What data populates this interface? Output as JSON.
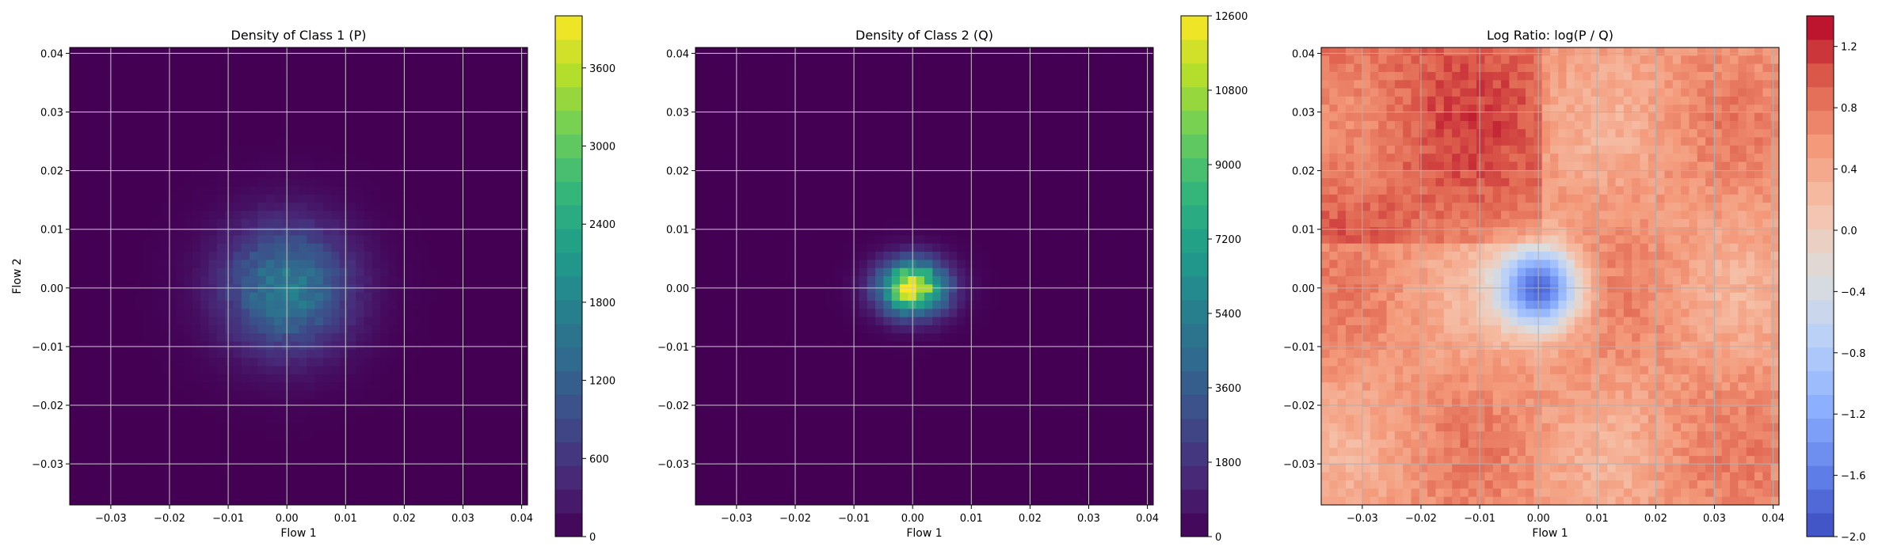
{
  "chart_data": [
    {
      "type": "heatmap",
      "title": "Density of Class 1 (P)",
      "xlabel": "Flow 1",
      "ylabel": "Flow 2",
      "xlim": [
        -0.037,
        0.041
      ],
      "ylim": [
        -0.037,
        0.041
      ],
      "xticks": [
        "−0.03",
        "−0.02",
        "−0.01",
        "0.00",
        "0.01",
        "0.02",
        "0.03",
        "0.04"
      ],
      "xtick_values": [
        -0.03,
        -0.02,
        -0.01,
        0.0,
        0.01,
        0.02,
        0.03,
        0.04
      ],
      "yticks": [
        "−0.03",
        "−0.02",
        "−0.01",
        "0.00",
        "0.01",
        "0.02",
        "0.03",
        "0.04"
      ],
      "ytick_values": [
        -0.03,
        -0.02,
        -0.01,
        0.0,
        0.01,
        0.02,
        0.03,
        0.04
      ],
      "grid": true,
      "colormap": "viridis",
      "colorbar": {
        "min": 0,
        "max": 4000,
        "ticks": [
          "0",
          "600",
          "1200",
          "1800",
          "2400",
          "3000",
          "3600"
        ],
        "tick_values": [
          0,
          600,
          1200,
          1800,
          2400,
          3000,
          3600
        ]
      },
      "peak": {
        "x": 0.0,
        "y": 0.0,
        "value": 1700,
        "spread": 0.0075
      }
    },
    {
      "type": "heatmap",
      "title": "Density of Class 2 (Q)",
      "xlabel": "Flow 1",
      "ylabel": "",
      "xlim": [
        -0.037,
        0.041
      ],
      "ylim": [
        -0.037,
        0.041
      ],
      "xticks": [
        "−0.03",
        "−0.02",
        "−0.01",
        "0.00",
        "0.01",
        "0.02",
        "0.03",
        "0.04"
      ],
      "xtick_values": [
        -0.03,
        -0.02,
        -0.01,
        0.0,
        0.01,
        0.02,
        0.03,
        0.04
      ],
      "yticks": [
        "−0.03",
        "−0.02",
        "−0.01",
        "0.00",
        "0.01",
        "0.02",
        "0.03",
        "0.04"
      ],
      "ytick_values": [
        -0.03,
        -0.02,
        -0.01,
        0.0,
        0.01,
        0.02,
        0.03,
        0.04
      ],
      "grid": true,
      "colormap": "viridis",
      "colorbar": {
        "min": 0,
        "max": 12600,
        "ticks": [
          "0",
          "1800",
          "3600",
          "5400",
          "7200",
          "9000",
          "10800",
          "12600"
        ],
        "tick_values": [
          0,
          1800,
          3600,
          5400,
          7200,
          9000,
          10800,
          12600
        ]
      },
      "peak": {
        "x": 0.0,
        "y": 0.0,
        "value": 12000,
        "spread": 0.004
      }
    },
    {
      "type": "heatmap",
      "title": "Log Ratio: log(P / Q)",
      "xlabel": "Flow 1",
      "ylabel": "",
      "xlim": [
        -0.037,
        0.041
      ],
      "ylim": [
        -0.037,
        0.041
      ],
      "xticks": [
        "−0.03",
        "−0.02",
        "−0.01",
        "0.00",
        "0.01",
        "0.02",
        "0.03",
        "0.04"
      ],
      "xtick_values": [
        -0.03,
        -0.02,
        -0.01,
        0.0,
        0.01,
        0.02,
        0.03,
        0.04
      ],
      "yticks": [
        "−0.03",
        "−0.02",
        "−0.01",
        "0.00",
        "0.01",
        "0.02",
        "0.03",
        "0.04"
      ],
      "ytick_values": [
        -0.03,
        -0.02,
        -0.01,
        0.0,
        0.01,
        0.02,
        0.03,
        0.04
      ],
      "grid": true,
      "colormap": "coolwarm",
      "colorbar": {
        "min": -2.0,
        "max": 1.4,
        "ticks": [
          "−2.0",
          "−1.6",
          "−1.2",
          "−0.8",
          "−0.4",
          "0.0",
          "0.4",
          "0.8",
          "1.2"
        ],
        "tick_values": [
          -2.0,
          -1.6,
          -1.2,
          -0.8,
          -0.4,
          0.0,
          0.4,
          0.8,
          1.2
        ]
      },
      "center": {
        "x": 0.0,
        "y": 0.0,
        "value": -1.8,
        "spread": 0.005
      },
      "background_value": 0.55
    }
  ]
}
